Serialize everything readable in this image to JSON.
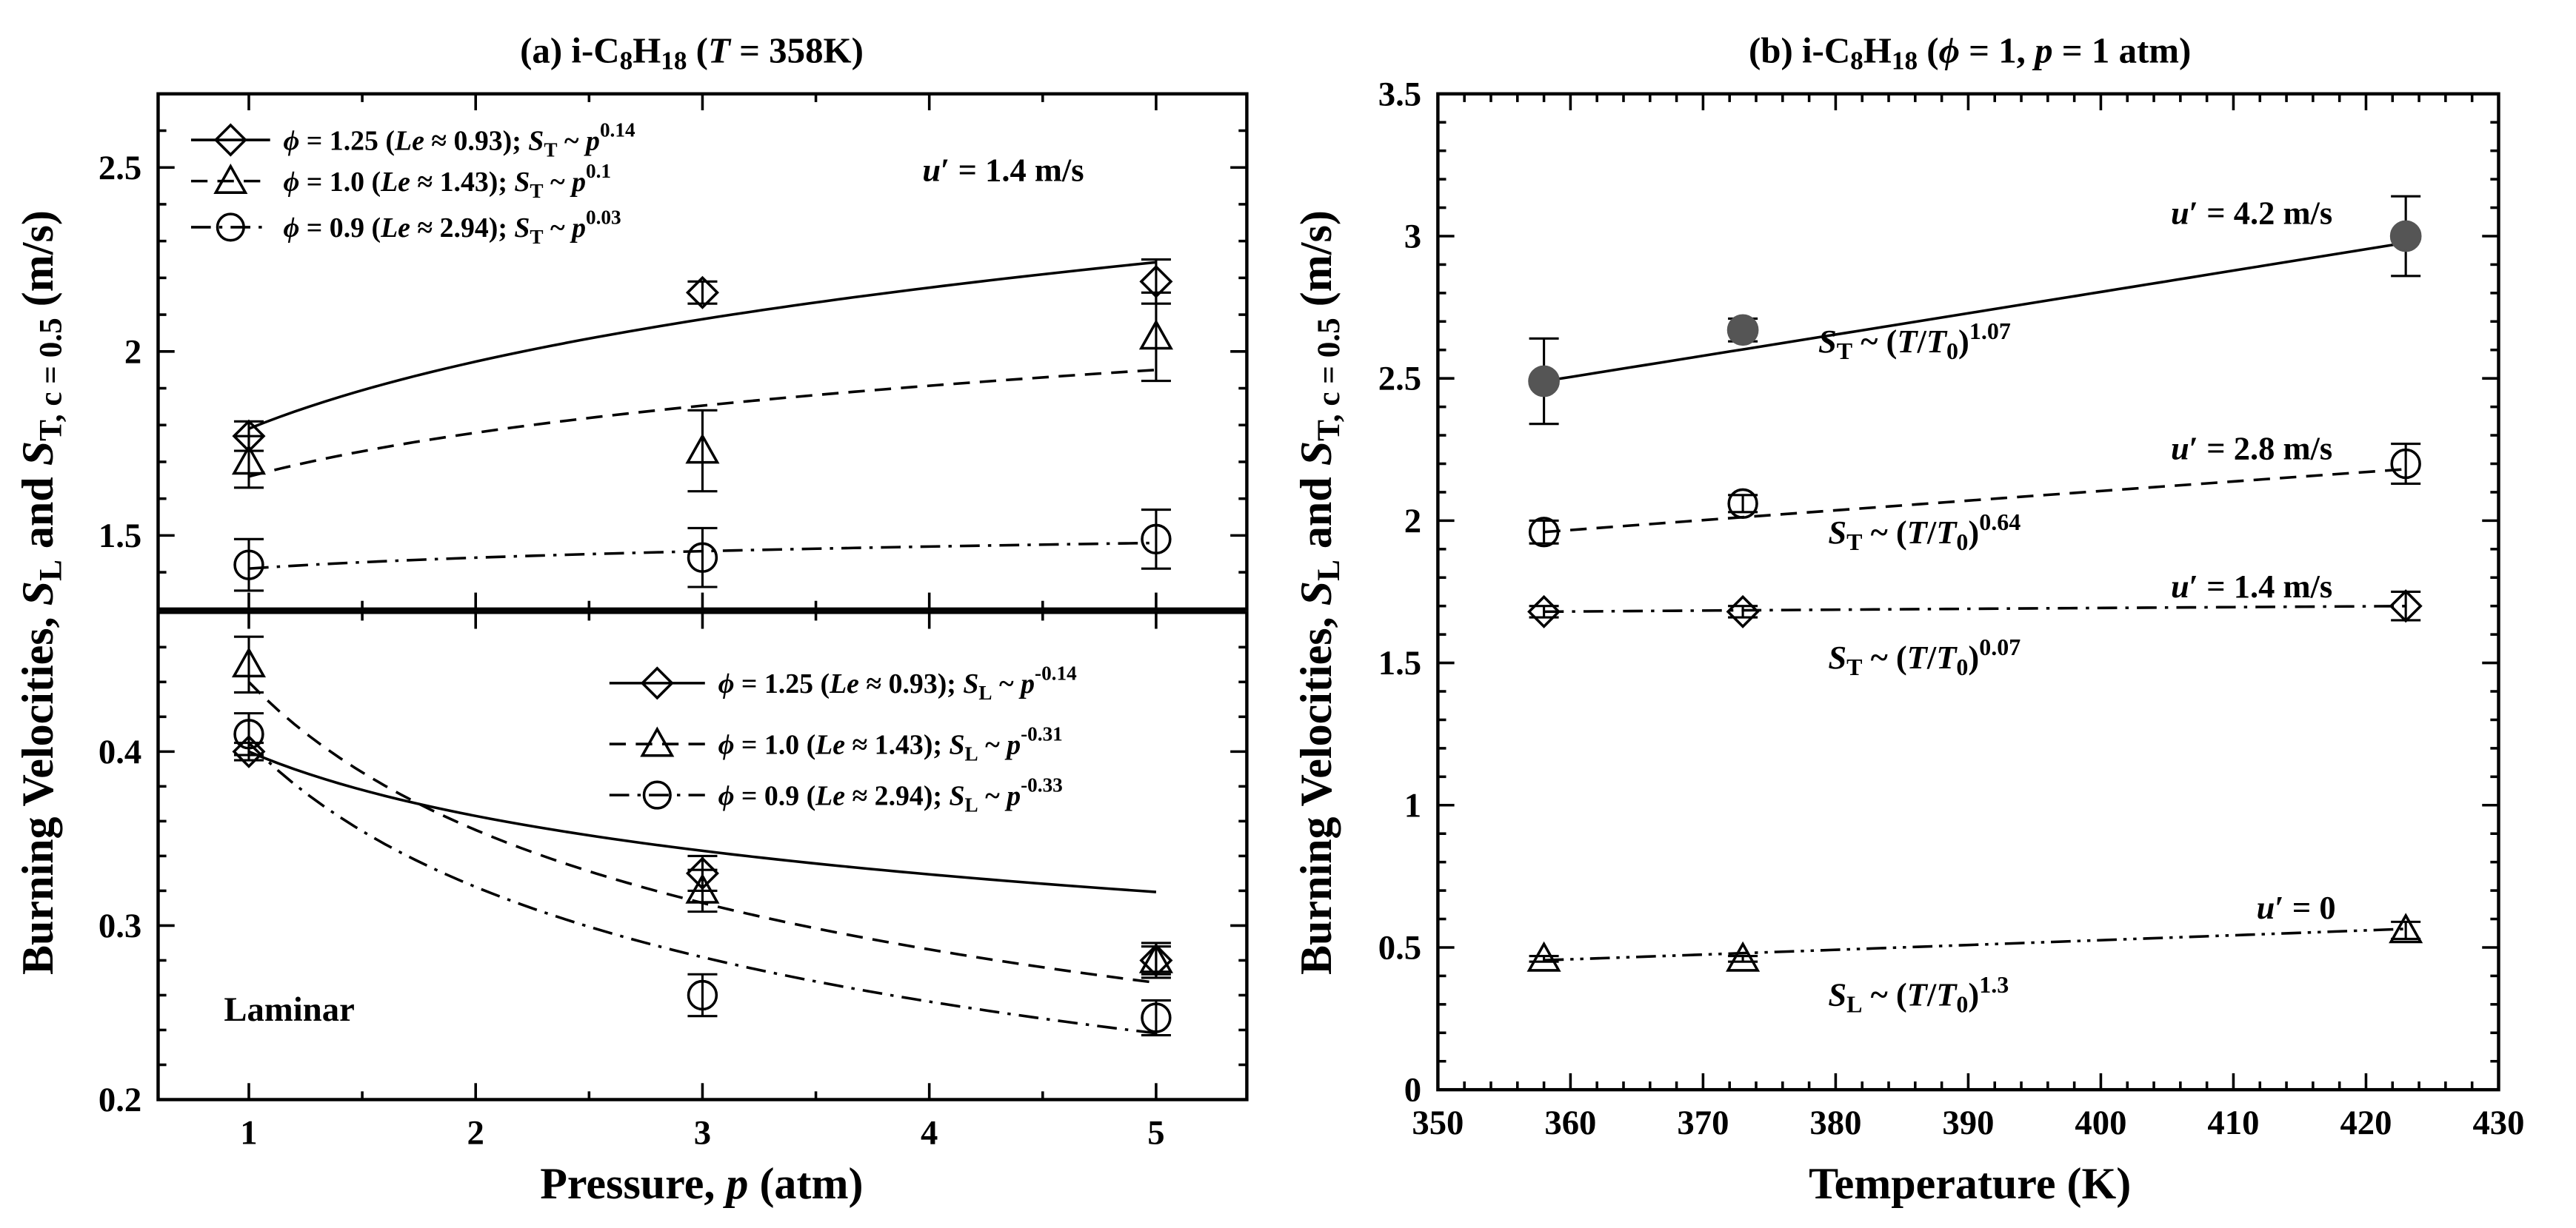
{
  "chart_data": [
    {
      "id": "a_top",
      "type": "scatter",
      "panel": "(a)",
      "title_label": "(a)",
      "title_fuel": "i-C",
      "title_sub1": "8",
      "title_h": "H",
      "title_sub2": "18",
      "title_cond_open": " (",
      "title_var": "T",
      "title_cond_rest": " = 358K)",
      "x_range": [
        0.6,
        5.4
      ],
      "ylim": [
        1.3,
        2.7
      ],
      "ylabel_part1": "Burning Velocities, ",
      "ylabel_s1": "S",
      "ylabel_sub1": "L",
      "ylabel_part2": " and ",
      "ylabel_s2": "S",
      "ylabel_sub2": "T, c = 0.5",
      "ylabel_part3": " (m/s)",
      "yticks": [
        1.5,
        2.0,
        2.5
      ],
      "ytick_labels": [
        "1.5",
        "2",
        "2.5"
      ],
      "annotation_u": "u",
      "annotation_u_rest": "′ = 1.4 m/s",
      "series": [
        {
          "name": "phi = 1.25",
          "marker": "diamond",
          "line": "solid",
          "legend_phi": "ϕ",
          "legend_rest": " = 1.25 (",
          "legend_le": "Le",
          "legend_le_rest": " ≈ 0.93); ",
          "legend_s": "S",
          "legend_sub": "T",
          "legend_tilde": " ~ ",
          "legend_p": "p",
          "legend_exp": "0.14",
          "x": [
            1,
            3,
            5
          ],
          "y": [
            1.77,
            2.16,
            2.19
          ],
          "err": [
            0.04,
            0.03,
            0.06
          ],
          "fit_exp": 0.14,
          "fit_at_1": 1.79
        },
        {
          "name": "phi = 1.0",
          "marker": "triangle",
          "line": "dashed",
          "legend_phi": "ϕ",
          "legend_rest": " = 1.0 (",
          "legend_le": "Le",
          "legend_le_rest": " ≈ 1.43); ",
          "legend_s": "S",
          "legend_sub": "T",
          "legend_tilde": " ~ ",
          "legend_p": "p",
          "legend_exp": "0.1",
          "x": [
            1,
            3,
            5
          ],
          "y": [
            1.7,
            1.73,
            2.04
          ],
          "err": [
            0.07,
            0.11,
            0.12
          ],
          "fit_exp": 0.1,
          "fit_at_1": 1.66
        },
        {
          "name": "phi = 0.9",
          "marker": "circle",
          "line": "dashdot",
          "legend_phi": "ϕ",
          "legend_rest": " = 0.9 (",
          "legend_le": "Le",
          "legend_le_rest": " ≈ 2.94); ",
          "legend_s": "S",
          "legend_sub": "T",
          "legend_tilde": " ~ ",
          "legend_p": "p",
          "legend_exp": "0.03",
          "x": [
            1,
            3,
            5
          ],
          "y": [
            1.42,
            1.44,
            1.49
          ],
          "err": [
            0.07,
            0.08,
            0.08
          ],
          "fit_exp": 0.03,
          "fit_at_1": 1.41
        }
      ]
    },
    {
      "id": "a_bottom",
      "type": "scatter",
      "panel": "(a)",
      "xlim": [
        0.6,
        5.4
      ],
      "ylim": [
        0.2,
        0.48
      ],
      "xticks": [
        1,
        2,
        3,
        4,
        5
      ],
      "xtick_labels": [
        "1",
        "2",
        "3",
        "4",
        "5"
      ],
      "yticks": [
        0.2,
        0.3,
        0.4
      ],
      "ytick_labels": [
        "0.2",
        "0.3",
        "0.4"
      ],
      "xlabel_part1": "Pressure, ",
      "xlabel_var": "p",
      "xlabel_part2": " (atm)",
      "annotation": "Laminar",
      "series": [
        {
          "name": "phi = 1.25",
          "marker": "diamond",
          "line": "solid",
          "legend_phi": "ϕ",
          "legend_rest": " = 1.25 (",
          "legend_le": "Le",
          "legend_le_rest": " ≈ 0.93); ",
          "legend_s": "S",
          "legend_sub": "L",
          "legend_tilde": " ~ ",
          "legend_p": "p",
          "legend_exp": "-0.14",
          "x": [
            1,
            3,
            5
          ],
          "y": [
            0.4,
            0.33,
            0.28
          ],
          "err": [
            0.005,
            0.01,
            0.008
          ],
          "fit_exp": -0.14,
          "fit_at_1": 0.4
        },
        {
          "name": "phi = 1.0",
          "marker": "triangle",
          "line": "dashed",
          "legend_phi": "ϕ",
          "legend_rest": " = 1.0 (",
          "legend_le": "Le",
          "legend_le_rest": " ≈ 1.43); ",
          "legend_s": "S",
          "legend_sub": "L",
          "legend_tilde": " ~ ",
          "legend_p": "p",
          "legend_exp": "-0.31",
          "x": [
            1,
            3,
            5
          ],
          "y": [
            0.45,
            0.32,
            0.28
          ],
          "err": [
            0.016,
            0.012,
            0.01
          ],
          "fit_exp": -0.31,
          "fit_at_1": 0.44
        },
        {
          "name": "phi = 0.9",
          "marker": "circle",
          "line": "dashdot",
          "legend_phi": "ϕ",
          "legend_rest": " = 0.9 (",
          "legend_le": "Le",
          "legend_le_rest": " ≈ 2.94); ",
          "legend_s": "S",
          "legend_sub": "L",
          "legend_tilde": " ~ ",
          "legend_p": "p",
          "legend_exp": "-0.33",
          "x": [
            1,
            3,
            5
          ],
          "y": [
            0.41,
            0.26,
            0.247
          ],
          "err": [
            0.012,
            0.012,
            0.01
          ],
          "fit_exp": -0.33,
          "fit_at_1": 0.405
        }
      ]
    },
    {
      "id": "b",
      "type": "scatter",
      "panel": "(b)",
      "title_label": "(b)",
      "title_fuel": "i-C",
      "title_sub1": "8",
      "title_h": "H",
      "title_sub2": "18",
      "title_cond_open": " (",
      "title_phi": "ϕ",
      "title_cond_mid": " = 1, ",
      "title_p": "p",
      "title_cond_rest": " = 1 atm)",
      "xlim": [
        350,
        430
      ],
      "ylim": [
        0,
        3.5
      ],
      "xticks": [
        350,
        360,
        370,
        380,
        390,
        400,
        410,
        420,
        430
      ],
      "xtick_labels": [
        "350",
        "360",
        "370",
        "380",
        "390",
        "400",
        "410",
        "420",
        "430"
      ],
      "yticks": [
        0,
        0.5,
        1,
        1.5,
        2,
        2.5,
        3,
        3.5
      ],
      "ytick_labels": [
        "0",
        "0.5",
        "1",
        "1.5",
        "2",
        "2.5",
        "3",
        "3.5"
      ],
      "xlabel": "Temperature (K)",
      "ylabel_part1": "Burning Velocities, ",
      "ylabel_s1": "S",
      "ylabel_sub1": "L",
      "ylabel_part2": " and ",
      "ylabel_s2": "S",
      "ylabel_sub2": "T, c = 0.5",
      "ylabel_part3": " (m/s)",
      "T0": 358,
      "series": [
        {
          "name": "u' = 4.2 m/s",
          "marker": "filled-circle",
          "line": "solid",
          "label_u": "u",
          "label_rest": "′ = 4.2 m/s",
          "fit_s": "S",
          "fit_sub": "T",
          "fit_mid": " ~ (",
          "fit_t": "T",
          "fit_slash": "/",
          "fit_t0": "T",
          "fit_0": "0",
          "fit_close": ")",
          "fit_exp": "1.07",
          "x": [
            358,
            373,
            423
          ],
          "y": [
            2.49,
            2.67,
            3.0
          ],
          "err": [
            0.15,
            0.04,
            0.14
          ],
          "exp": 1.07,
          "fit_at_T0": 2.49
        },
        {
          "name": "u' = 2.8 m/s",
          "marker": "circle",
          "line": "dashed",
          "label_u": "u",
          "label_rest": "′ = 2.8 m/s",
          "fit_s": "S",
          "fit_sub": "T",
          "fit_mid": " ~ (",
          "fit_t": "T",
          "fit_slash": "/",
          "fit_t0": "T",
          "fit_0": "0",
          "fit_close": ")",
          "fit_exp": "0.64",
          "x": [
            358,
            373,
            423
          ],
          "y": [
            1.96,
            2.06,
            2.2
          ],
          "err": [
            0.04,
            0.03,
            0.07
          ],
          "exp": 0.64,
          "fit_at_T0": 1.96
        },
        {
          "name": "u' = 1.4 m/s",
          "marker": "diamond",
          "line": "dashdot",
          "label_u": "u",
          "label_rest": "′ = 1.4 m/s",
          "fit_s": "S",
          "fit_sub": "T",
          "fit_mid": " ~ (",
          "fit_t": "T",
          "fit_slash": "/",
          "fit_t0": "T",
          "fit_0": "0",
          "fit_close": ")",
          "fit_exp": "0.07",
          "x": [
            358,
            373,
            423
          ],
          "y": [
            1.68,
            1.68,
            1.7
          ],
          "err": [
            0.02,
            0.02,
            0.05
          ],
          "exp": 0.07,
          "fit_at_T0": 1.68
        },
        {
          "name": "u' = 0",
          "marker": "triangle",
          "line": "dashdotdot",
          "label_u": "u",
          "label_rest": "′ = 0",
          "fit_s": "S",
          "fit_sub": "L",
          "fit_mid": " ~ (",
          "fit_t": "T",
          "fit_slash": "/",
          "fit_t0": "T",
          "fit_0": "0",
          "fit_close": ")",
          "fit_exp": "1.3",
          "x": [
            358,
            373,
            423
          ],
          "y": [
            0.46,
            0.46,
            0.56
          ],
          "err": [
            0.01,
            0.01,
            0.03
          ],
          "exp": 1.3,
          "fit_at_T0": 0.455
        }
      ]
    }
  ]
}
